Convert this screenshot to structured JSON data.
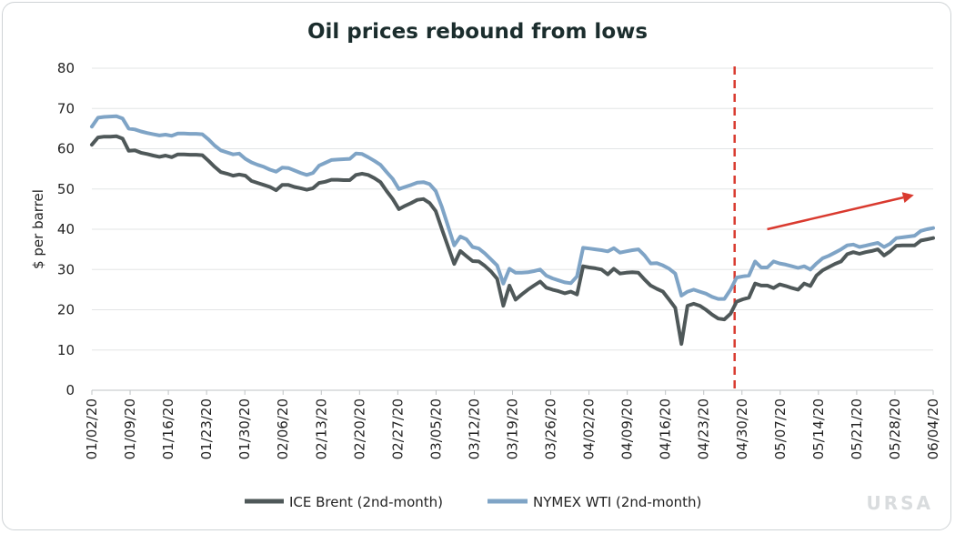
{
  "chart_data": {
    "type": "line",
    "title": "Oil prices rebound from lows",
    "ylabel": "$ per barrel",
    "xlabel": "",
    "ylim": [
      0,
      80
    ],
    "yticks": [
      0,
      10,
      20,
      30,
      40,
      50,
      60,
      70,
      80
    ],
    "grid": "horizontal",
    "legend_position": "bottom",
    "x_tick_labels": [
      "01/02/20",
      "01/09/20",
      "01/16/20",
      "01/23/20",
      "01/30/20",
      "02/06/20",
      "02/13/20",
      "02/20/20",
      "02/27/20",
      "03/05/20",
      "03/12/20",
      "03/19/20",
      "03/26/20",
      "04/02/20",
      "04/09/20",
      "04/16/20",
      "04/23/20",
      "04/30/20",
      "05/07/20",
      "05/14/20",
      "05/21/20",
      "05/28/20",
      "06/04/20"
    ],
    "n_points": 110,
    "annotations": {
      "vertical_line": {
        "at_index": 84,
        "style": "dashed",
        "color": "#d93a2f"
      },
      "arrow": {
        "from": [
          87.5,
          40
        ],
        "to": [
          106.5,
          48.5
        ],
        "color": "#d93a2f"
      }
    },
    "series": [
      {
        "name": "ICE Brent (2nd-month)",
        "color": "#4f5859",
        "values": [
          61,
          62.8,
          63,
          63,
          63.1,
          62.5,
          59.5,
          59.6,
          59,
          58.7,
          58.3,
          58,
          58.3,
          57.9,
          58.6,
          58.6,
          58.5,
          58.5,
          58.4,
          57,
          55.5,
          54.2,
          53.8,
          53.3,
          53.6,
          53.3,
          52,
          51.5,
          51,
          50.5,
          49.7,
          51,
          51,
          50.5,
          50.2,
          49.8,
          50.2,
          51.5,
          51.8,
          52.3,
          52.3,
          52.2,
          52.2,
          53.5,
          53.8,
          53.5,
          52.7,
          51.7,
          49.5,
          47.5,
          45,
          45.8,
          46.5,
          47.3,
          47.5,
          46.5,
          44.5,
          40,
          35.7,
          31.4,
          34.6,
          33.3,
          32.1,
          32,
          30.9,
          29.5,
          27.7,
          21,
          26,
          22.5,
          23.8,
          25,
          26,
          27,
          25.5,
          25,
          24.6,
          24.1,
          24.5,
          23.8,
          30.8,
          30.5,
          30.3,
          30,
          28.8,
          30.2,
          29,
          29.2,
          29.3,
          29.2,
          27.5,
          26,
          25.2,
          24.5,
          22.5,
          20.5,
          11.5,
          21,
          21.5,
          21,
          20,
          18.8,
          17.8,
          17.6,
          19,
          22,
          22.6,
          23,
          26.5,
          26
        ],
        "index_offset": 0
      },
      {
        "name": "NYMEX WTI (2nd-month)",
        "color": "#7fa4c6",
        "values": [
          65.5,
          67.7,
          67.9,
          68,
          68.1,
          67.5,
          65,
          64.8,
          64.3,
          63.9,
          63.6,
          63.3,
          63.5,
          63.2,
          63.8,
          63.8,
          63.7,
          63.7,
          63.6,
          62.3,
          60.8,
          59.6,
          59.1,
          58.6,
          58.8,
          57.5,
          56.6,
          56,
          55.5,
          54.8,
          54.3,
          55.3,
          55.2,
          54.6,
          54,
          53.5,
          54,
          55.8,
          56.5,
          57.2,
          57.3,
          57.4,
          57.5,
          58.8,
          58.7,
          57.9,
          57,
          56,
          54.2,
          52.5,
          50,
          50.5,
          51,
          51.6,
          51.7,
          51.2,
          49.5,
          45.5,
          40.8,
          36,
          38.2,
          37.5,
          35.6,
          35.2,
          34,
          32.5,
          31,
          26.5,
          30.2,
          29.2,
          29.2,
          29.3,
          29.6,
          30,
          28.5,
          27.8,
          27.3,
          26.8,
          26.6,
          28.3,
          35.4,
          35.2,
          35,
          34.8,
          34.5,
          35.3,
          34.2,
          34.5,
          34.8,
          35,
          33.5,
          31.5,
          31.6,
          31,
          30.2,
          29,
          23.5,
          24.5,
          25,
          24.5,
          24,
          23.2,
          22.7,
          22.7,
          25,
          28,
          28.3,
          28.5,
          32,
          30.5
        ],
        "index_offset": 0
      }
    ],
    "tail_series": [
      {
        "name": "ICE Brent (2nd-month)",
        "values": [
          26,
          25.4,
          26.3,
          25.9,
          25.4,
          25,
          26.5,
          25.9,
          28.5,
          29.8,
          30.6,
          31.4,
          32,
          33.8,
          34.3,
          33.9,
          34.3,
          34.6,
          35,
          33.5,
          34.5,
          35.9,
          36,
          36,
          36,
          37.2,
          37.5,
          37.8
        ]
      },
      {
        "name": "NYMEX WTI (2nd-month)",
        "values": [
          30.5,
          32,
          31.5,
          31.2,
          30.8,
          30.4,
          30.8,
          30,
          31.5,
          32.8,
          33.4,
          34.2,
          35,
          36,
          36.2,
          35.6,
          35.9,
          36.3,
          36.6,
          35.6,
          36.4,
          37.8,
          38,
          38.2,
          38.4,
          39.6,
          40,
          40.3
        ]
      }
    ]
  },
  "watermark": "URSA"
}
